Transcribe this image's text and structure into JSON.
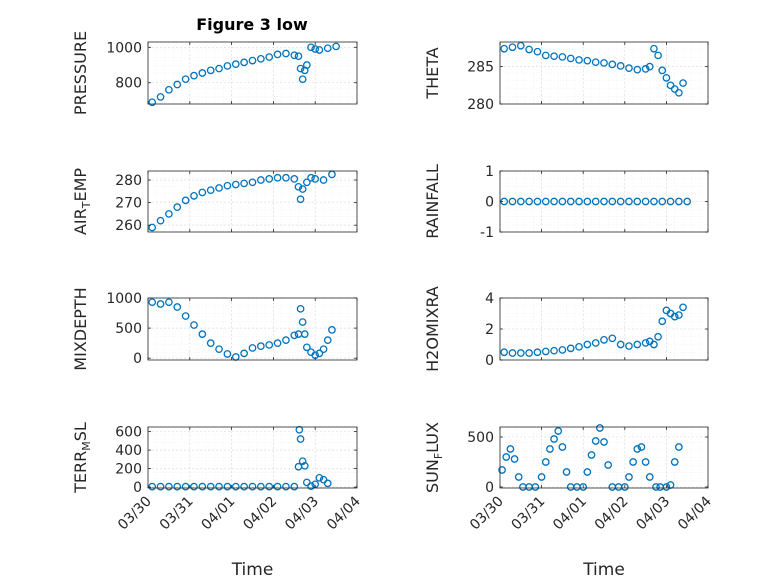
{
  "figure_title": "Figure 3 low",
  "marker_color": "#0072bd",
  "x_ticks": [
    "03/30",
    "03/31",
    "04/01",
    "04/02",
    "04/03",
    "04/04"
  ],
  "chart_data": [
    {
      "type": "scatter",
      "ylabel": "PRESSURE",
      "xlabel": "",
      "title": "Figure 3 low",
      "ylim": [
        680,
        1030
      ],
      "yticks": [
        800,
        1000
      ],
      "xlim": [
        0,
        5
      ],
      "x": [
        0.1,
        0.3,
        0.5,
        0.7,
        0.9,
        1.1,
        1.3,
        1.5,
        1.7,
        1.9,
        2.1,
        2.3,
        2.5,
        2.7,
        2.9,
        3.1,
        3.3,
        3.5,
        3.6,
        3.65,
        3.7,
        3.75,
        3.8,
        3.9,
        4.0,
        4.1,
        4.3,
        4.5
      ],
      "y": [
        690,
        720,
        760,
        790,
        820,
        840,
        855,
        870,
        880,
        895,
        905,
        915,
        925,
        935,
        945,
        960,
        965,
        955,
        950,
        880,
        820,
        870,
        900,
        1000,
        990,
        985,
        995,
        1005
      ]
    },
    {
      "type": "scatter",
      "ylabel": "THETA",
      "xlabel": "",
      "ylim": [
        280,
        288.3
      ],
      "yticks": [
        280,
        285
      ],
      "xlim": [
        0,
        5
      ],
      "x": [
        0.1,
        0.3,
        0.5,
        0.7,
        0.9,
        1.1,
        1.3,
        1.5,
        1.7,
        1.9,
        2.1,
        2.3,
        2.5,
        2.7,
        2.9,
        3.1,
        3.3,
        3.5,
        3.6,
        3.7,
        3.8,
        3.9,
        4.0,
        4.1,
        4.2,
        4.3,
        4.4
      ],
      "y": [
        287.4,
        287.6,
        287.8,
        287.3,
        287.0,
        286.5,
        286.4,
        286.3,
        286.1,
        285.9,
        285.8,
        285.6,
        285.5,
        285.3,
        285.1,
        284.8,
        284.6,
        284.7,
        285.0,
        287.4,
        286.5,
        284.5,
        283.5,
        282.5,
        282.0,
        281.5,
        282.8
      ]
    },
    {
      "type": "scatter",
      "ylabel": "AIR_TEMP",
      "xlabel": "",
      "ylim": [
        257,
        284
      ],
      "yticks": [
        260,
        270,
        280
      ],
      "xlim": [
        0,
        5
      ],
      "x": [
        0.1,
        0.3,
        0.5,
        0.7,
        0.9,
        1.1,
        1.3,
        1.5,
        1.7,
        1.9,
        2.1,
        2.3,
        2.5,
        2.7,
        2.9,
        3.1,
        3.3,
        3.5,
        3.6,
        3.65,
        3.7,
        3.8,
        3.9,
        4.0,
        4.2,
        4.4
      ],
      "y": [
        259,
        262,
        265,
        268,
        271,
        273,
        274.5,
        275.5,
        276.5,
        277.5,
        278,
        278.5,
        279,
        280,
        280.5,
        281,
        281,
        280.5,
        277,
        271.5,
        276,
        279,
        281,
        280.5,
        280,
        282.5
      ]
    },
    {
      "type": "scatter",
      "ylabel": "RAINFALL",
      "xlabel": "",
      "ylim": [
        -1,
        1
      ],
      "yticks": [
        -1,
        0,
        1
      ],
      "xlim": [
        0,
        5
      ],
      "x": [
        0.1,
        0.3,
        0.5,
        0.7,
        0.9,
        1.1,
        1.3,
        1.5,
        1.7,
        1.9,
        2.1,
        2.3,
        2.5,
        2.7,
        2.9,
        3.1,
        3.3,
        3.5,
        3.7,
        3.9,
        4.1,
        4.3,
        4.5
      ],
      "y": [
        0,
        0,
        0,
        0,
        0,
        0,
        0,
        0,
        0,
        0,
        0,
        0,
        0,
        0,
        0,
        0,
        0,
        0,
        0,
        0,
        0,
        0,
        0
      ]
    },
    {
      "type": "scatter",
      "ylabel": "MIXDEPTH",
      "xlabel": "",
      "ylim": [
        -30,
        1000
      ],
      "yticks": [
        0,
        500,
        1000
      ],
      "xlim": [
        0,
        5
      ],
      "x": [
        0.1,
        0.3,
        0.5,
        0.7,
        0.9,
        1.1,
        1.3,
        1.5,
        1.7,
        1.9,
        2.1,
        2.3,
        2.5,
        2.7,
        2.9,
        3.1,
        3.3,
        3.5,
        3.6,
        3.65,
        3.7,
        3.75,
        3.8,
        3.9,
        4.0,
        4.1,
        4.2,
        4.3,
        4.4
      ],
      "y": [
        930,
        900,
        930,
        850,
        700,
        550,
        400,
        250,
        150,
        70,
        20,
        80,
        170,
        200,
        220,
        250,
        300,
        380,
        400,
        820,
        600,
        400,
        180,
        100,
        50,
        80,
        150,
        300,
        470
      ]
    },
    {
      "type": "scatter",
      "ylabel": "H2OMIXRA",
      "xlabel": "",
      "ylim": [
        0,
        4
      ],
      "yticks": [
        0,
        2,
        4
      ],
      "xlim": [
        0,
        5
      ],
      "x": [
        0.1,
        0.3,
        0.5,
        0.7,
        0.9,
        1.1,
        1.3,
        1.5,
        1.7,
        1.9,
        2.1,
        2.3,
        2.5,
        2.7,
        2.9,
        3.1,
        3.3,
        3.5,
        3.6,
        3.7,
        3.8,
        3.9,
        4.0,
        4.1,
        4.2,
        4.3,
        4.4
      ],
      "y": [
        0.5,
        0.45,
        0.45,
        0.45,
        0.5,
        0.55,
        0.6,
        0.65,
        0.75,
        0.85,
        1.0,
        1.1,
        1.3,
        1.4,
        1.0,
        0.9,
        1.0,
        1.1,
        1.2,
        1.0,
        1.5,
        2.5,
        3.2,
        3.0,
        2.8,
        2.9,
        3.4
      ]
    },
    {
      "type": "scatter",
      "ylabel": "TERR_MSL",
      "xlabel": "Time",
      "ylim": [
        -10,
        650
      ],
      "yticks": [
        0,
        200,
        400,
        600
      ],
      "xlim": [
        0,
        5
      ],
      "x": [
        0.1,
        0.3,
        0.5,
        0.7,
        0.9,
        1.1,
        1.3,
        1.5,
        1.7,
        1.9,
        2.1,
        2.3,
        2.5,
        2.7,
        2.9,
        3.1,
        3.3,
        3.5,
        3.6,
        3.62,
        3.65,
        3.7,
        3.75,
        3.8,
        3.9,
        4.0,
        4.1,
        4.2,
        4.3
      ],
      "y": [
        5,
        5,
        5,
        5,
        5,
        5,
        5,
        5,
        5,
        5,
        5,
        5,
        5,
        5,
        5,
        5,
        5,
        5,
        220,
        620,
        520,
        280,
        230,
        50,
        10,
        30,
        100,
        80,
        40
      ]
    },
    {
      "type": "scatter",
      "ylabel": "SUN_FLUX",
      "xlabel": "Time",
      "ylim": [
        -10,
        600
      ],
      "yticks": [
        0,
        500
      ],
      "xlim": [
        0,
        5
      ],
      "x": [
        0.05,
        0.15,
        0.25,
        0.35,
        0.45,
        0.55,
        0.7,
        0.85,
        1.0,
        1.1,
        1.2,
        1.3,
        1.4,
        1.5,
        1.6,
        1.7,
        1.85,
        2.0,
        2.1,
        2.2,
        2.3,
        2.4,
        2.5,
        2.6,
        2.7,
        2.85,
        3.0,
        3.1,
        3.2,
        3.3,
        3.4,
        3.5,
        3.6,
        3.75,
        3.85,
        4.0,
        4.1,
        4.2,
        4.3
      ],
      "y": [
        170,
        300,
        380,
        280,
        100,
        0,
        0,
        0,
        100,
        250,
        380,
        480,
        560,
        400,
        150,
        0,
        0,
        0,
        150,
        320,
        460,
        590,
        450,
        220,
        0,
        0,
        0,
        100,
        250,
        380,
        400,
        250,
        100,
        0,
        0,
        0,
        20,
        250,
        400
      ]
    }
  ]
}
